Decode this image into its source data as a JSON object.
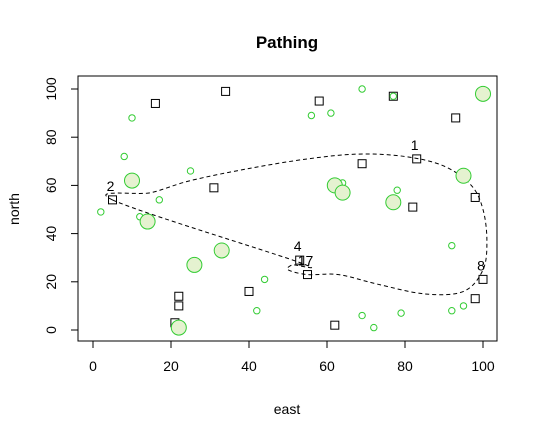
{
  "chart_data": {
    "type": "scatter",
    "title": "Pathing",
    "xlabel": "east",
    "ylabel": "north",
    "xlim": [
      0,
      100
    ],
    "ylim": [
      0,
      100
    ],
    "xticks": [
      "0",
      "20",
      "40",
      "60",
      "80",
      "100"
    ],
    "yticks": [
      "0",
      "20",
      "40",
      "60",
      "80",
      "100"
    ],
    "grid": false,
    "point_labels": [
      {
        "text": "1",
        "x": 83,
        "y": 71
      },
      {
        "text": "2",
        "x": 5,
        "y": 54
      },
      {
        "text": "4",
        "x": 53,
        "y": 29
      },
      {
        "text": "17",
        "x": 55,
        "y": 23
      },
      {
        "text": "8",
        "x": 100,
        "y": 21
      }
    ],
    "series": [
      {
        "marker": "open square",
        "color": "#000000",
        "points": [
          {
            "x": 5,
            "y": 54
          },
          {
            "x": 16,
            "y": 94
          },
          {
            "x": 21,
            "y": 3
          },
          {
            "x": 22,
            "y": 10
          },
          {
            "x": 22,
            "y": 14
          },
          {
            "x": 31,
            "y": 59
          },
          {
            "x": 34,
            "y": 99
          },
          {
            "x": 40,
            "y": 16
          },
          {
            "x": 53,
            "y": 29
          },
          {
            "x": 55,
            "y": 23
          },
          {
            "x": 58,
            "y": 95
          },
          {
            "x": 62,
            "y": 2
          },
          {
            "x": 69,
            "y": 69
          },
          {
            "x": 77,
            "y": 97
          },
          {
            "x": 82,
            "y": 51
          },
          {
            "x": 83,
            "y": 71
          },
          {
            "x": 93,
            "y": 88
          },
          {
            "x": 98,
            "y": 55
          },
          {
            "x": 98,
            "y": 13
          },
          {
            "x": 100,
            "y": 21
          }
        ]
      },
      {
        "marker": "small open circle",
        "color": "#33cc33",
        "points": [
          {
            "x": 2,
            "y": 49
          },
          {
            "x": 8,
            "y": 72
          },
          {
            "x": 10,
            "y": 88
          },
          {
            "x": 12,
            "y": 47
          },
          {
            "x": 17,
            "y": 54
          },
          {
            "x": 25,
            "y": 66
          },
          {
            "x": 42,
            "y": 8
          },
          {
            "x": 44,
            "y": 21
          },
          {
            "x": 56,
            "y": 89
          },
          {
            "x": 61,
            "y": 90
          },
          {
            "x": 64,
            "y": 61
          },
          {
            "x": 69,
            "y": 100
          },
          {
            "x": 69,
            "y": 6
          },
          {
            "x": 72,
            "y": 1
          },
          {
            "x": 77,
            "y": 97
          },
          {
            "x": 78,
            "y": 58
          },
          {
            "x": 79,
            "y": 7
          },
          {
            "x": 92,
            "y": 35
          },
          {
            "x": 92,
            "y": 8
          },
          {
            "x": 95,
            "y": 10
          }
        ]
      },
      {
        "marker": "large filled circle",
        "color": "#33cc33",
        "fill": "#e5f2d0",
        "points": [
          {
            "x": 10,
            "y": 62
          },
          {
            "x": 14,
            "y": 45
          },
          {
            "x": 22,
            "y": 1
          },
          {
            "x": 26,
            "y": 27
          },
          {
            "x": 33,
            "y": 33
          },
          {
            "x": 62,
            "y": 60
          },
          {
            "x": 64,
            "y": 57
          },
          {
            "x": 77,
            "y": 53
          },
          {
            "x": 95,
            "y": 64
          },
          {
            "x": 100,
            "y": 98
          }
        ]
      }
    ],
    "path": {
      "style": "dashed",
      "color": "#000000",
      "closed": true,
      "points": [
        {
          "x": 5,
          "y": 54
        },
        {
          "x": 15,
          "y": 57
        },
        {
          "x": 25,
          "y": 62
        },
        {
          "x": 40,
          "y": 67
        },
        {
          "x": 55,
          "y": 71
        },
        {
          "x": 68,
          "y": 73
        },
        {
          "x": 80,
          "y": 72
        },
        {
          "x": 90,
          "y": 68
        },
        {
          "x": 97,
          "y": 60
        },
        {
          "x": 100,
          "y": 50
        },
        {
          "x": 101,
          "y": 37
        },
        {
          "x": 100,
          "y": 25
        },
        {
          "x": 95,
          "y": 16
        },
        {
          "x": 85,
          "y": 15
        },
        {
          "x": 73,
          "y": 19
        },
        {
          "x": 63,
          "y": 23
        },
        {
          "x": 55,
          "y": 23
        },
        {
          "x": 50,
          "y": 25
        },
        {
          "x": 51,
          "y": 27
        },
        {
          "x": 53,
          "y": 28
        }
      ]
    }
  }
}
